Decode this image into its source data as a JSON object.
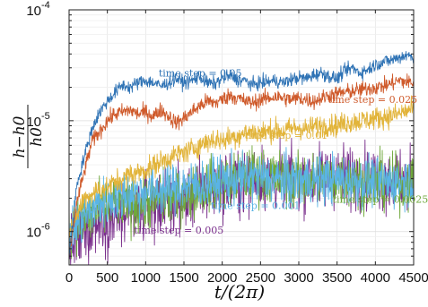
{
  "chart_data": {
    "type": "line",
    "x_scale": "linear",
    "y_scale": "log",
    "xlim": [
      0,
      4500
    ],
    "ylim": [
      5e-07,
      0.0001
    ],
    "grid": true,
    "xticks": [
      "0",
      "500",
      "1000",
      "1500",
      "2000",
      "2500",
      "3000",
      "3500",
      "4000",
      "4500"
    ],
    "yticks": [
      {
        "value": 1e-06,
        "base": "10",
        "exp": "-6"
      },
      {
        "value": 1e-05,
        "base": "10",
        "exp": "-5"
      },
      {
        "value": 0.0001,
        "base": "10",
        "exp": "-4"
      }
    ],
    "xlabel": "t/(2π)",
    "ylabel": {
      "num": "h−h0",
      "den": "h0"
    },
    "series": [
      {
        "name": "time step = 0.05",
        "color": "#2f73b5",
        "noise": 0.03,
        "points": [
          [
            0,
            6e-07
          ],
          [
            50,
            1.2e-06
          ],
          [
            100,
            2.6e-06
          ],
          [
            200,
            4.8e-06
          ],
          [
            300,
            8.5e-06
          ],
          [
            400,
            1.2e-05
          ],
          [
            500,
            1.5e-05
          ],
          [
            600,
            1.8e-05
          ],
          [
            700,
            2.1e-05
          ],
          [
            800,
            2e-05
          ],
          [
            900,
            2.2e-05
          ],
          [
            1000,
            2.3e-05
          ],
          [
            1100,
            2.2e-05
          ],
          [
            1200,
            2.05e-05
          ],
          [
            1300,
            2.2e-05
          ],
          [
            1400,
            2.4e-05
          ],
          [
            1500,
            2.2e-05
          ],
          [
            1600,
            2.3e-05
          ],
          [
            1700,
            2.5e-05
          ],
          [
            1800,
            2.2e-05
          ],
          [
            1900,
            2.15e-05
          ],
          [
            2000,
            2.4e-05
          ],
          [
            2100,
            2.55e-05
          ],
          [
            2200,
            2.35e-05
          ],
          [
            2300,
            2.3e-05
          ],
          [
            2400,
            2.1e-05
          ],
          [
            2500,
            2.2e-05
          ],
          [
            2600,
            2.25e-05
          ],
          [
            2700,
            2.3e-05
          ],
          [
            2800,
            2.2e-05
          ],
          [
            2900,
            2.35e-05
          ],
          [
            3000,
            2.45e-05
          ],
          [
            3100,
            2.4e-05
          ],
          [
            3200,
            2.6e-05
          ],
          [
            3300,
            2.7e-05
          ],
          [
            3400,
            2.5e-05
          ],
          [
            3500,
            2.4e-05
          ],
          [
            3600,
            2.8e-05
          ],
          [
            3700,
            3e-05
          ],
          [
            3800,
            2.7e-05
          ],
          [
            3900,
            2.9e-05
          ],
          [
            4000,
            3.2e-05
          ],
          [
            4100,
            3.4e-05
          ],
          [
            4200,
            3.5e-05
          ],
          [
            4300,
            3.7e-05
          ],
          [
            4400,
            3.9e-05
          ],
          [
            4500,
            3.8e-05
          ]
        ]
      },
      {
        "name": "time step = 0.025",
        "color": "#cf5a2b",
        "noise": 0.035,
        "points": [
          [
            0,
            6e-07
          ],
          [
            100,
            1.8e-06
          ],
          [
            200,
            3.5e-06
          ],
          [
            300,
            6.5e-06
          ],
          [
            400,
            8e-06
          ],
          [
            500,
            1e-05
          ],
          [
            600,
            1.15e-05
          ],
          [
            700,
            1.2e-05
          ],
          [
            800,
            1.25e-05
          ],
          [
            900,
            1.15e-05
          ],
          [
            1000,
            1.2e-05
          ],
          [
            1100,
            1.1e-05
          ],
          [
            1200,
            1.25e-05
          ],
          [
            1300,
            1.1e-05
          ],
          [
            1400,
            9.5e-06
          ],
          [
            1500,
            1.05e-05
          ],
          [
            1600,
            1.2e-05
          ],
          [
            1700,
            1.35e-05
          ],
          [
            1800,
            1.5e-05
          ],
          [
            1900,
            1.45e-05
          ],
          [
            2000,
            1.55e-05
          ],
          [
            2100,
            1.7e-05
          ],
          [
            2200,
            1.6e-05
          ],
          [
            2300,
            1.5e-05
          ],
          [
            2400,
            1.45e-05
          ],
          [
            2500,
            1.55e-05
          ],
          [
            2600,
            1.6e-05
          ],
          [
            2700,
            1.65e-05
          ],
          [
            2800,
            1.6e-05
          ],
          [
            2900,
            1.55e-05
          ],
          [
            3000,
            1.6e-05
          ],
          [
            3100,
            1.55e-05
          ],
          [
            3200,
            1.5e-05
          ],
          [
            3300,
            1.6e-05
          ],
          [
            3400,
            1.7e-05
          ],
          [
            3500,
            1.75e-05
          ],
          [
            3600,
            1.8e-05
          ],
          [
            3700,
            1.85e-05
          ],
          [
            3800,
            1.9e-05
          ],
          [
            3900,
            1.95e-05
          ],
          [
            4000,
            2e-05
          ],
          [
            4100,
            2.05e-05
          ],
          [
            4200,
            2.15e-05
          ],
          [
            4300,
            2.3e-05
          ],
          [
            4400,
            2.25e-05
          ],
          [
            4500,
            2.2e-05
          ]
        ]
      },
      {
        "name": "time step = 0.01",
        "color": "#e2b43a",
        "noise": 0.05,
        "points": [
          [
            0,
            1e-06
          ],
          [
            100,
            1.4e-06
          ],
          [
            200,
            2e-06
          ],
          [
            300,
            2.2e-06
          ],
          [
            400,
            2.4e-06
          ],
          [
            500,
            2.5e-06
          ],
          [
            600,
            2.8e-06
          ],
          [
            700,
            3e-06
          ],
          [
            800,
            3.3e-06
          ],
          [
            900,
            3.4e-06
          ],
          [
            1000,
            3.6e-06
          ],
          [
            1100,
            3.9e-06
          ],
          [
            1200,
            4.3e-06
          ],
          [
            1300,
            4.6e-06
          ],
          [
            1400,
            4.9e-06
          ],
          [
            1500,
            5.2e-06
          ],
          [
            1600,
            5.5e-06
          ],
          [
            1700,
            6e-06
          ],
          [
            1800,
            6.5e-06
          ],
          [
            1900,
            6.8e-06
          ],
          [
            2000,
            6.6e-06
          ],
          [
            2100,
            7e-06
          ],
          [
            2200,
            7.3e-06
          ],
          [
            2300,
            7.8e-06
          ],
          [
            2400,
            8e-06
          ],
          [
            2500,
            7.8e-06
          ],
          [
            2600,
            8e-06
          ],
          [
            2700,
            8.3e-06
          ],
          [
            2800,
            8e-06
          ],
          [
            2900,
            8.5e-06
          ],
          [
            3000,
            8.7e-06
          ],
          [
            3100,
            8.4e-06
          ],
          [
            3200,
            8.8e-06
          ],
          [
            3300,
            9e-06
          ],
          [
            3400,
            9.2e-06
          ],
          [
            3500,
            9e-06
          ],
          [
            3600,
            9.5e-06
          ],
          [
            3700,
            9.8e-06
          ],
          [
            3800,
            1e-05
          ],
          [
            3900,
            1.02e-05
          ],
          [
            4000,
            1.05e-05
          ],
          [
            4100,
            1.08e-05
          ],
          [
            4200,
            1.1e-05
          ],
          [
            4300,
            1.15e-05
          ],
          [
            4400,
            1.22e-05
          ],
          [
            4500,
            1.28e-05
          ]
        ]
      },
      {
        "name": "time step = 0.0025",
        "color": "#6fa83c",
        "noise": 0.12,
        "points": [
          [
            0,
            1e-06
          ],
          [
            200,
            1.3e-06
          ],
          [
            400,
            1.5e-06
          ],
          [
            600,
            1.8e-06
          ],
          [
            800,
            1.7e-06
          ],
          [
            1000,
            1.8e-06
          ],
          [
            1200,
            2e-06
          ],
          [
            1400,
            2e-06
          ],
          [
            1600,
            2.3e-06
          ],
          [
            1800,
            2.6e-06
          ],
          [
            2000,
            2.8e-06
          ],
          [
            2200,
            3.1e-06
          ],
          [
            2400,
            3.3e-06
          ],
          [
            2600,
            3.1e-06
          ],
          [
            2800,
            3e-06
          ],
          [
            3000,
            2.9e-06
          ],
          [
            3200,
            2.9e-06
          ],
          [
            3400,
            3e-06
          ],
          [
            3600,
            3e-06
          ],
          [
            3800,
            2.9e-06
          ],
          [
            4000,
            2.8e-06
          ],
          [
            4200,
            2.7e-06
          ],
          [
            4400,
            2.8e-06
          ],
          [
            4500,
            2.9e-06
          ]
        ]
      },
      {
        "name": "time step = 0.005",
        "color": "#7a2f8c",
        "noise": 0.14,
        "points": [
          [
            0,
            7e-07
          ],
          [
            200,
            1e-06
          ],
          [
            400,
            1.3e-06
          ],
          [
            600,
            1.3e-06
          ],
          [
            800,
            1.4e-06
          ],
          [
            1000,
            1.6e-06
          ],
          [
            1200,
            1.8e-06
          ],
          [
            1400,
            1.9e-06
          ],
          [
            1600,
            2.1e-06
          ],
          [
            1800,
            2.4e-06
          ],
          [
            2000,
            2.6e-06
          ],
          [
            2200,
            2.8e-06
          ],
          [
            2400,
            3e-06
          ],
          [
            2600,
            3e-06
          ],
          [
            2800,
            2.9e-06
          ],
          [
            3000,
            3e-06
          ],
          [
            3200,
            3.1e-06
          ],
          [
            3400,
            3.2e-06
          ],
          [
            3600,
            3.2e-06
          ],
          [
            3800,
            3.1e-06
          ],
          [
            4000,
            3e-06
          ],
          [
            4200,
            2.9e-06
          ],
          [
            4400,
            2.9e-06
          ],
          [
            4500,
            2.95e-06
          ]
        ]
      },
      {
        "name": "time step = 0.001",
        "color": "#5ab4e5",
        "noise": 0.11,
        "points": [
          [
            0,
            1e-06
          ],
          [
            200,
            1.4e-06
          ],
          [
            400,
            1.8e-06
          ],
          [
            600,
            2e-06
          ],
          [
            800,
            2.2e-06
          ],
          [
            1000,
            2.3e-06
          ],
          [
            1200,
            2.4e-06
          ],
          [
            1400,
            2.5e-06
          ],
          [
            1600,
            2.6e-06
          ],
          [
            1800,
            2.7e-06
          ],
          [
            2000,
            2.9e-06
          ],
          [
            2200,
            3e-06
          ],
          [
            2400,
            3.1e-06
          ],
          [
            2600,
            3e-06
          ],
          [
            2800,
            2.9e-06
          ],
          [
            3000,
            2.9e-06
          ],
          [
            3200,
            2.95e-06
          ],
          [
            3400,
            3e-06
          ],
          [
            3600,
            2.95e-06
          ],
          [
            3800,
            2.85e-06
          ],
          [
            4000,
            2.8e-06
          ],
          [
            4200,
            2.75e-06
          ],
          [
            4400,
            2.85e-06
          ],
          [
            4500,
            2.9e-06
          ]
        ]
      }
    ],
    "annotations": [
      {
        "text": "time step = 0.05",
        "color": "#2f73b5",
        "x": 1170,
        "y": 2.5e-05
      },
      {
        "text": "time step = 0.025",
        "color": "#cf5a2b",
        "x": 3380,
        "y": 1.45e-05
      },
      {
        "text": "time step = 0.01",
        "color": "#e2b43a",
        "x": 2290,
        "y": 6.9e-06
      },
      {
        "text": "time step = 0.001",
        "color": "#5ab4e5",
        "x": 1850,
        "y": 1.6e-06
      },
      {
        "text": "time step = 0.0025",
        "color": "#6fa83c",
        "x": 3440,
        "y": 1.82e-06
      },
      {
        "text": "time step = 0.005",
        "color": "#7a2f8c",
        "x": 850,
        "y": 9.6e-07
      }
    ]
  }
}
